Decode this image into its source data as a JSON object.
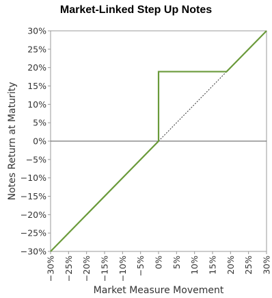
{
  "chart_data": {
    "type": "line",
    "title": "Market-Linked Step Up Notes",
    "xlabel": "Market Measure Movement",
    "ylabel": "Notes Return at Maturity",
    "xlim": [
      -30,
      30
    ],
    "ylim": [
      -30,
      30
    ],
    "x_ticks": [
      -30,
      -25,
      -20,
      -15,
      -10,
      -5,
      0,
      5,
      10,
      15,
      20,
      25,
      30
    ],
    "y_ticks": [
      30,
      25,
      20,
      15,
      10,
      5,
      0,
      -5,
      -10,
      -15,
      -20,
      -25,
      -30
    ],
    "x_tick_labels": [
      "−30%",
      "−25%",
      "−20%",
      "−15%",
      "−10%",
      "−5%",
      "0%",
      "5%",
      "10%",
      "15%",
      "20%",
      "25%",
      "30%"
    ],
    "y_tick_labels": [
      "30%",
      "25%",
      "20%",
      "15%",
      "10%",
      "5%",
      "0%",
      "−5%",
      "−10%",
      "−15%",
      "−20%",
      "−25%",
      "−30%"
    ],
    "grid": false,
    "series": [
      {
        "style": "solid",
        "color": "#6a9a3a",
        "x": [
          -30,
          0,
          0,
          18.9,
          30
        ],
        "y": [
          -30,
          0,
          18.9,
          18.9,
          30
        ]
      },
      {
        "style": "dotted",
        "color": "#333333",
        "x": [
          0,
          18.9
        ],
        "y": [
          0,
          18.9
        ]
      }
    ],
    "reference_lines": [
      {
        "axis": "y",
        "value": 0,
        "color": "#555555"
      }
    ]
  }
}
